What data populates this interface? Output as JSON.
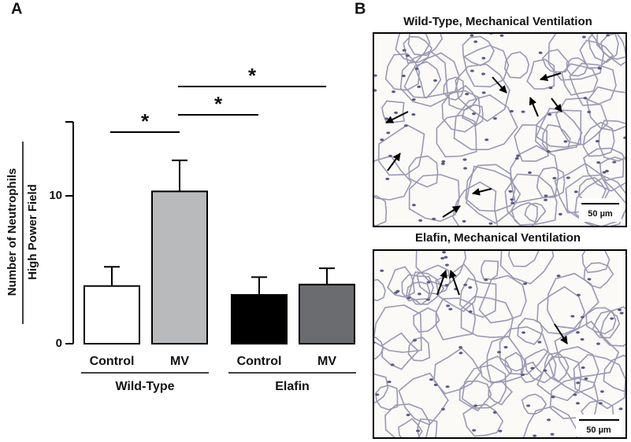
{
  "panel_labels": [
    "A",
    "B"
  ],
  "chart_data": {
    "type": "bar",
    "ylabel_top": "Number of Neutrophils",
    "ylabel_bottom": "High Power Field",
    "categories": [
      "Control",
      "MV",
      "Control",
      "MV"
    ],
    "groups": [
      "Wild-Type",
      "Elafin"
    ],
    "values": [
      3.9,
      10.3,
      3.3,
      4.0
    ],
    "errors": [
      1.3,
      2.1,
      1.2,
      1.1
    ],
    "colors": [
      "#ffffff",
      "#b9babc",
      "#000000",
      "#6b6c70"
    ],
    "ylim": [
      0,
      15
    ],
    "yticks": [
      0,
      10
    ],
    "significance": [
      {
        "label": "*",
        "pair": [
          0,
          1
        ]
      },
      {
        "label": "*",
        "pair": [
          1,
          2
        ]
      },
      {
        "label": "*",
        "pair": [
          1,
          3
        ]
      }
    ]
  },
  "micrographs": [
    {
      "title": "Wild-Type, Mechanical Ventilation",
      "scale_bar": "50 µm"
    },
    {
      "title": "Elafin, Mechanical Ventilation",
      "scale_bar": "50 µm"
    }
  ]
}
